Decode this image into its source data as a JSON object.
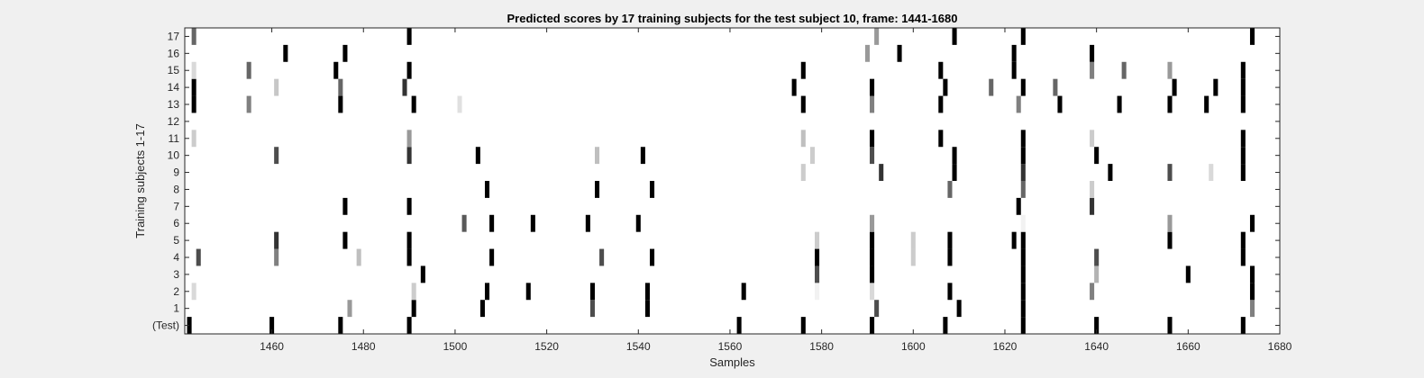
{
  "chart_data": {
    "type": "heatmap",
    "title": "Predicted scores by 17 training subjects for the test subject 10, frame: 1441-1680",
    "xlabel": "Samples",
    "ylabel": "Training subjects 1-17",
    "xlim": [
      1441,
      1680
    ],
    "xticks": [
      1460,
      1480,
      1500,
      1520,
      1540,
      1560,
      1580,
      1600,
      1620,
      1640,
      1660,
      1680
    ],
    "rows": [
      "(Test)",
      "1",
      "2",
      "3",
      "4",
      "5",
      "6",
      "7",
      "8",
      "9",
      "10",
      "11",
      "12",
      "13",
      "14",
      "15",
      "16",
      "17"
    ],
    "colormap": "gray (0 = black, 1 = white)",
    "cells": [
      {
        "row": "(Test)",
        "marks": [
          [
            1442,
            0
          ],
          [
            1460,
            0
          ],
          [
            1475,
            0
          ],
          [
            1490,
            0
          ],
          [
            1562,
            0
          ],
          [
            1576,
            0
          ],
          [
            1591,
            0
          ],
          [
            1607,
            0
          ],
          [
            1624,
            0
          ],
          [
            1640,
            0
          ],
          [
            1656,
            0
          ],
          [
            1672,
            0
          ]
        ]
      },
      {
        "row": "1",
        "marks": [
          [
            1477,
            0.6
          ],
          [
            1491,
            0
          ],
          [
            1506,
            0
          ],
          [
            1530,
            0.3
          ],
          [
            1542,
            0
          ],
          [
            1592,
            0.3
          ],
          [
            1610,
            0
          ],
          [
            1624,
            0
          ],
          [
            1674,
            0.5
          ]
        ]
      },
      {
        "row": "2",
        "marks": [
          [
            1443,
            0.85
          ],
          [
            1491,
            0.8
          ],
          [
            1507,
            0
          ],
          [
            1516,
            0
          ],
          [
            1530,
            0
          ],
          [
            1542,
            0
          ],
          [
            1563,
            0
          ],
          [
            1579,
            0.95
          ],
          [
            1591,
            0.85
          ],
          [
            1608,
            0
          ],
          [
            1624,
            0
          ],
          [
            1639,
            0.5
          ],
          [
            1674,
            0
          ]
        ]
      },
      {
        "row": "3",
        "marks": [
          [
            1493,
            0
          ],
          [
            1579,
            0.3
          ],
          [
            1591,
            0
          ],
          [
            1624,
            0
          ],
          [
            1640,
            0.7
          ],
          [
            1660,
            0
          ],
          [
            1674,
            0
          ]
        ]
      },
      {
        "row": "4",
        "marks": [
          [
            1444,
            0.3
          ],
          [
            1461,
            0.5
          ],
          [
            1479,
            0.75
          ],
          [
            1490,
            0
          ],
          [
            1508,
            0
          ],
          [
            1532,
            0.3
          ],
          [
            1543,
            0
          ],
          [
            1579,
            0
          ],
          [
            1591,
            0
          ],
          [
            1600,
            0.8
          ],
          [
            1608,
            0
          ],
          [
            1624,
            0
          ],
          [
            1640,
            0.3
          ],
          [
            1672,
            0
          ]
        ]
      },
      {
        "row": "5",
        "marks": [
          [
            1461,
            0.2
          ],
          [
            1476,
            0
          ],
          [
            1490,
            0
          ],
          [
            1579,
            0.8
          ],
          [
            1591,
            0
          ],
          [
            1600,
            0.8
          ],
          [
            1608,
            0
          ],
          [
            1622,
            0
          ],
          [
            1624,
            0
          ],
          [
            1656,
            0
          ],
          [
            1672,
            0
          ]
        ]
      },
      {
        "row": "6",
        "marks": [
          [
            1502,
            0.35
          ],
          [
            1508,
            0
          ],
          [
            1517,
            0
          ],
          [
            1529,
            0
          ],
          [
            1540,
            0
          ],
          [
            1591,
            0.6
          ],
          [
            1624,
            0.95
          ],
          [
            1656,
            0.6
          ],
          [
            1674,
            0
          ]
        ]
      },
      {
        "row": "7",
        "marks": [
          [
            1476,
            0
          ],
          [
            1490,
            0
          ],
          [
            1623,
            0
          ],
          [
            1639,
            0.2
          ]
        ]
      },
      {
        "row": "8",
        "marks": [
          [
            1507,
            0
          ],
          [
            1531,
            0
          ],
          [
            1543,
            0
          ],
          [
            1608,
            0.4
          ],
          [
            1624,
            0.4
          ],
          [
            1639,
            0.8
          ]
        ]
      },
      {
        "row": "9",
        "marks": [
          [
            1576,
            0.8
          ],
          [
            1593,
            0.2
          ],
          [
            1609,
            0
          ],
          [
            1624,
            0.2
          ],
          [
            1643,
            0
          ],
          [
            1656,
            0.3
          ],
          [
            1665,
            0.85
          ],
          [
            1672,
            0
          ]
        ]
      },
      {
        "row": "10",
        "marks": [
          [
            1461,
            0.3
          ],
          [
            1490,
            0.2
          ],
          [
            1505,
            0
          ],
          [
            1531,
            0.75
          ],
          [
            1541,
            0
          ],
          [
            1578,
            0.8
          ],
          [
            1591,
            0.3
          ],
          [
            1609,
            0
          ],
          [
            1624,
            0
          ],
          [
            1640,
            0
          ],
          [
            1672,
            0
          ]
        ]
      },
      {
        "row": "11",
        "marks": [
          [
            1443,
            0.8
          ],
          [
            1490,
            0.6
          ],
          [
            1576,
            0.75
          ],
          [
            1591,
            0
          ],
          [
            1606,
            0
          ],
          [
            1624,
            0
          ],
          [
            1639,
            0.8
          ],
          [
            1672,
            0
          ]
        ]
      },
      {
        "row": "12",
        "marks": []
      },
      {
        "row": "13",
        "marks": [
          [
            1443,
            0
          ],
          [
            1455,
            0.5
          ],
          [
            1475,
            0
          ],
          [
            1491,
            0
          ],
          [
            1501,
            0.88
          ],
          [
            1576,
            0
          ],
          [
            1591,
            0.5
          ],
          [
            1606,
            0
          ],
          [
            1623,
            0.5
          ],
          [
            1632,
            0
          ],
          [
            1645,
            0
          ],
          [
            1656,
            0
          ],
          [
            1664,
            0
          ],
          [
            1672,
            0
          ]
        ]
      },
      {
        "row": "14",
        "marks": [
          [
            1443,
            0
          ],
          [
            1461,
            0.78
          ],
          [
            1475,
            0.4
          ],
          [
            1489,
            0.2
          ],
          [
            1574,
            0
          ],
          [
            1591,
            0
          ],
          [
            1607,
            0
          ],
          [
            1617,
            0.4
          ],
          [
            1624,
            0
          ],
          [
            1631,
            0.4
          ],
          [
            1657,
            0
          ],
          [
            1666,
            0
          ],
          [
            1672,
            0
          ]
        ]
      },
      {
        "row": "15",
        "marks": [
          [
            1443,
            0.85
          ],
          [
            1455,
            0.4
          ],
          [
            1474,
            0
          ],
          [
            1490,
            0
          ],
          [
            1576,
            0
          ],
          [
            1606,
            0
          ],
          [
            1622,
            0
          ],
          [
            1639,
            0.5
          ],
          [
            1646,
            0.4
          ],
          [
            1656,
            0.6
          ],
          [
            1672,
            0
          ]
        ]
      },
      {
        "row": "16",
        "marks": [
          [
            1463,
            0
          ],
          [
            1476,
            0
          ],
          [
            1590,
            0.6
          ],
          [
            1597,
            0
          ],
          [
            1622,
            0
          ],
          [
            1639,
            0
          ]
        ]
      },
      {
        "row": "17",
        "marks": [
          [
            1443,
            0.4
          ],
          [
            1490,
            0
          ],
          [
            1592,
            0.6
          ],
          [
            1609,
            0
          ],
          [
            1624,
            0
          ],
          [
            1674,
            0
          ]
        ]
      }
    ]
  }
}
